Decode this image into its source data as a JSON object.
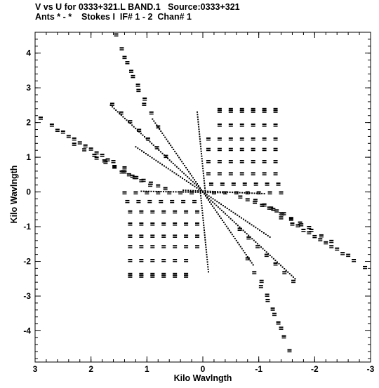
{
  "header": {
    "line1": "V vs U for 0333+321.L BAND.1   Source:0333+321",
    "line2": "Ants * - *    Stokes I  IF# 1 - 2  Chan# 1"
  },
  "chart_data": {
    "type": "scatter",
    "title": "V vs U for 0333+321.L BAND.1   Source:0333+321",
    "subtitle": "Ants * - *    Stokes I  IF# 1 - 2  Chan# 1",
    "xlabel": "Kilo Wavlngth",
    "ylabel": "Kilo Wavlngth",
    "xlim": [
      3.0,
      -3.0
    ],
    "ylim": [
      -4.9,
      4.6
    ],
    "xticks": [
      3,
      2,
      1,
      0,
      -1,
      -2,
      -3
    ],
    "xtick_labels": [
      "3",
      "2",
      "1",
      "0",
      "-1",
      "-2",
      "-3"
    ],
    "yticks": [
      4,
      3,
      2,
      1,
      0,
      -1,
      -2,
      -3,
      -4
    ],
    "ytick_labels": [
      "4",
      "3",
      "2",
      "1",
      "0",
      "-1",
      "-2",
      "-3",
      "-4"
    ],
    "grid": false,
    "point_color": "#000000",
    "series": [
      {
        "x": [
          1.55,
          1.45,
          1.35,
          1.25,
          1.15,
          1.05,
          1.4,
          1.28,
          1.16,
          1.04,
          0.92,
          0.8,
          1.62,
          1.46,
          1.3,
          1.14,
          0.98,
          0.82,
          0.66,
          2.9,
          2.7,
          2.5,
          2.3,
          2.1,
          1.9,
          1.7,
          2.6,
          2.4,
          2.2,
          2.0,
          1.8,
          1.6,
          1.4,
          2.3,
          2.12,
          1.94,
          1.76,
          1.58,
          1.4,
          1.22,
          1.9,
          1.74,
          1.58,
          1.42,
          1.26,
          1.1,
          0.94,
          1.45,
          1.32,
          1.19,
          1.06,
          0.93,
          0.8,
          0.67,
          1.4,
          1.2,
          1.0,
          0.8,
          0.6,
          0.4,
          0.2,
          1.35,
          1.15,
          0.95,
          0.75,
          0.55,
          0.35,
          0.15,
          1.3,
          1.1,
          0.9,
          0.7,
          0.5,
          0.3,
          0.1,
          1.3,
          1.1,
          0.9,
          0.7,
          0.5,
          0.3,
          0.1,
          1.3,
          1.1,
          0.9,
          0.7,
          0.5,
          0.3,
          0.1,
          1.3,
          1.1,
          0.9,
          0.7,
          0.5,
          0.3,
          0.1,
          1.3,
          1.1,
          0.9,
          0.7,
          0.5,
          0.3,
          1.3,
          1.1,
          0.9,
          0.7,
          0.5,
          0.3,
          1.3,
          1.1,
          0.9,
          0.7,
          0.5,
          0.3,
          -0.3,
          -0.5,
          -0.7,
          -0.9,
          -1.1,
          -1.3,
          -0.3,
          -0.5,
          -0.7,
          -0.9,
          -1.1,
          -1.3,
          -0.3,
          -0.5,
          -0.7,
          -0.9,
          -1.1,
          -1.3,
          -0.1,
          -0.3,
          -0.5,
          -0.7,
          -0.9,
          -1.1,
          -1.3,
          -0.1,
          -0.3,
          -0.5,
          -0.7,
          -0.9,
          -1.1,
          -1.3,
          -0.1,
          -0.3,
          -0.5,
          -0.7,
          -0.9,
          -1.1,
          -1.3,
          -0.1,
          -0.3,
          -0.5,
          -0.7,
          -0.9,
          -1.1,
          -1.3,
          -0.15,
          -0.35,
          -0.55,
          -0.75,
          -0.95,
          -1.15,
          -1.35,
          -0.2,
          -0.4,
          -0.6,
          -0.8,
          -1.0,
          -1.2,
          -1.4,
          -0.67,
          -0.8,
          -0.93,
          -1.06,
          -1.19,
          -1.32,
          -1.45,
          -0.94,
          -1.1,
          -1.26,
          -1.42,
          -1.58,
          -1.74,
          -1.9,
          -1.22,
          -1.4,
          -1.58,
          -1.76,
          -1.94,
          -2.12,
          -2.3,
          -1.4,
          -1.6,
          -1.8,
          -2.0,
          -2.2,
          -2.4,
          -2.6,
          -1.7,
          -1.9,
          -2.1,
          -2.3,
          -2.5,
          -2.7,
          -2.9,
          -0.66,
          -0.82,
          -0.98,
          -1.14,
          -1.3,
          -1.46,
          -1.62,
          -0.8,
          -0.92,
          -1.04,
          -1.16,
          -1.28,
          -1.4,
          -1.05,
          -1.15,
          -1.25,
          -1.35,
          -1.45,
          -1.55
        ],
        "y": [
          4.55,
          4.15,
          3.75,
          3.35,
          2.95,
          2.55,
          3.9,
          3.5,
          3.1,
          2.7,
          2.3,
          1.9,
          2.55,
          2.3,
          2.05,
          1.8,
          1.55,
          1.3,
          1.05,
          2.15,
          1.95,
          1.75,
          1.55,
          1.35,
          1.15,
          0.95,
          1.8,
          1.62,
          1.44,
          1.26,
          1.08,
          0.9,
          0.72,
          1.4,
          1.24,
          1.08,
          0.92,
          0.76,
          0.6,
          0.44,
          1.0,
          0.87,
          0.74,
          0.61,
          0.48,
          0.35,
          0.22,
          0.6,
          0.52,
          0.44,
          0.36,
          0.28,
          0.2,
          0.12,
          0.0,
          0.0,
          0.0,
          0.0,
          0.0,
          0.0,
          0.0,
          -0.25,
          -0.25,
          -0.25,
          -0.25,
          -0.25,
          -0.25,
          -0.25,
          -0.55,
          -0.55,
          -0.55,
          -0.55,
          -0.55,
          -0.55,
          -0.55,
          -0.9,
          -0.9,
          -0.9,
          -0.9,
          -0.9,
          -0.9,
          -0.9,
          -1.25,
          -1.25,
          -1.25,
          -1.25,
          -1.25,
          -1.25,
          -1.25,
          -1.55,
          -1.55,
          -1.55,
          -1.55,
          -1.55,
          -1.55,
          -1.55,
          -1.95,
          -1.95,
          -1.95,
          -1.95,
          -1.95,
          -1.95,
          -2.35,
          -2.35,
          -2.35,
          -2.35,
          -2.35,
          -2.35,
          -2.4,
          -2.4,
          -2.4,
          -2.4,
          -2.4,
          -2.4,
          2.4,
          2.4,
          2.4,
          2.4,
          2.4,
          2.4,
          2.35,
          2.35,
          2.35,
          2.35,
          2.35,
          2.35,
          1.95,
          1.95,
          1.95,
          1.95,
          1.95,
          1.95,
          1.55,
          1.55,
          1.55,
          1.55,
          1.55,
          1.55,
          1.55,
          1.25,
          1.25,
          1.25,
          1.25,
          1.25,
          1.25,
          1.25,
          0.9,
          0.9,
          0.9,
          0.9,
          0.9,
          0.9,
          0.9,
          0.55,
          0.55,
          0.55,
          0.55,
          0.55,
          0.55,
          0.55,
          0.25,
          0.25,
          0.25,
          0.25,
          0.25,
          0.25,
          0.25,
          0.0,
          0.0,
          0.0,
          0.0,
          0.0,
          0.0,
          0.0,
          -0.12,
          -0.2,
          -0.28,
          -0.36,
          -0.44,
          -0.52,
          -0.6,
          -0.22,
          -0.35,
          -0.48,
          -0.61,
          -0.74,
          -0.87,
          -1.0,
          -0.44,
          -0.6,
          -0.76,
          -0.92,
          -1.08,
          -1.24,
          -1.4,
          -0.72,
          -0.9,
          -1.08,
          -1.26,
          -1.44,
          -1.62,
          -1.8,
          -0.95,
          -1.15,
          -1.35,
          -1.55,
          -1.75,
          -1.95,
          -2.15,
          -1.05,
          -1.3,
          -1.55,
          -1.8,
          -2.05,
          -2.3,
          -2.55,
          -1.9,
          -2.3,
          -2.7,
          -3.1,
          -3.5,
          -3.9,
          -2.55,
          -2.95,
          -3.35,
          -3.75,
          -4.15,
          -4.55
        ]
      }
    ],
    "dotted_tracks": [
      {
        "from": [
          1.65,
          2.5
        ],
        "to": [
          0.05,
          0.1
        ]
      },
      {
        "from": [
          0.1,
          2.3
        ],
        "to": [
          -0.05,
          -0.1
        ]
      },
      {
        "from": [
          0.35,
          0.05
        ],
        "to": [
          -1.1,
          -0.05
        ]
      },
      {
        "from": [
          1.1,
          0.02
        ],
        "to": [
          -0.4,
          -0.02
        ]
      },
      {
        "from": [
          -0.05,
          -0.1
        ],
        "to": [
          -1.65,
          -2.5
        ]
      },
      {
        "from": [
          0.05,
          0.1
        ],
        "to": [
          -0.1,
          -2.3
        ]
      },
      {
        "from": [
          1.2,
          1.3
        ],
        "to": [
          -1.2,
          -1.3
        ]
      },
      {
        "from": [
          0.9,
          2.1
        ],
        "to": [
          -0.9,
          -2.1
        ]
      }
    ]
  }
}
